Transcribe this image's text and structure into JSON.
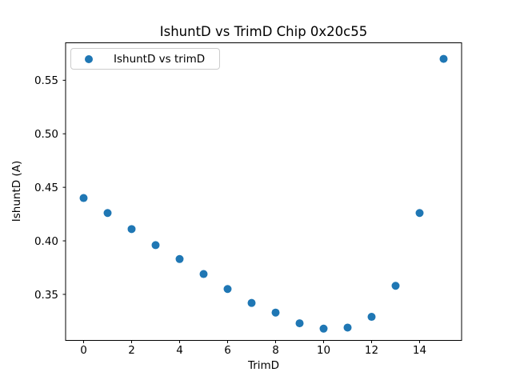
{
  "chart_data": {
    "type": "scatter",
    "title": "IshuntD vs TrimD Chip 0x20c55",
    "xlabel": "TrimD",
    "ylabel": "IshuntD (A)",
    "legend_label": "IshuntD vs trimD",
    "legend_position": "upper left",
    "grid": false,
    "marker_color": "#1f77b4",
    "legend_border_color": "#cccccc",
    "axis_color": "#000000",
    "background_color": "#ffffff",
    "xlim": [
      -0.75,
      15.75
    ],
    "ylim": [
      0.307,
      0.585
    ],
    "xticks": [
      0,
      2,
      4,
      6,
      8,
      10,
      12,
      14
    ],
    "xtick_labels": [
      "0",
      "2",
      "4",
      "6",
      "8",
      "10",
      "12",
      "14"
    ],
    "yticks": [
      0.35,
      0.4,
      0.45,
      0.5,
      0.55
    ],
    "ytick_labels": [
      "0.35",
      "0.40",
      "0.45",
      "0.50",
      "0.55"
    ],
    "series": [
      {
        "name": "IshuntD vs trimD",
        "color": "#1f77b4",
        "x": [
          0,
          1,
          2,
          3,
          4,
          5,
          6,
          7,
          8,
          9,
          10,
          11,
          12,
          13,
          14,
          15
        ],
        "y": [
          0.44,
          0.426,
          0.411,
          0.396,
          0.383,
          0.369,
          0.355,
          0.342,
          0.333,
          0.323,
          0.318,
          0.319,
          0.329,
          0.358,
          0.426,
          0.57
        ]
      }
    ]
  }
}
